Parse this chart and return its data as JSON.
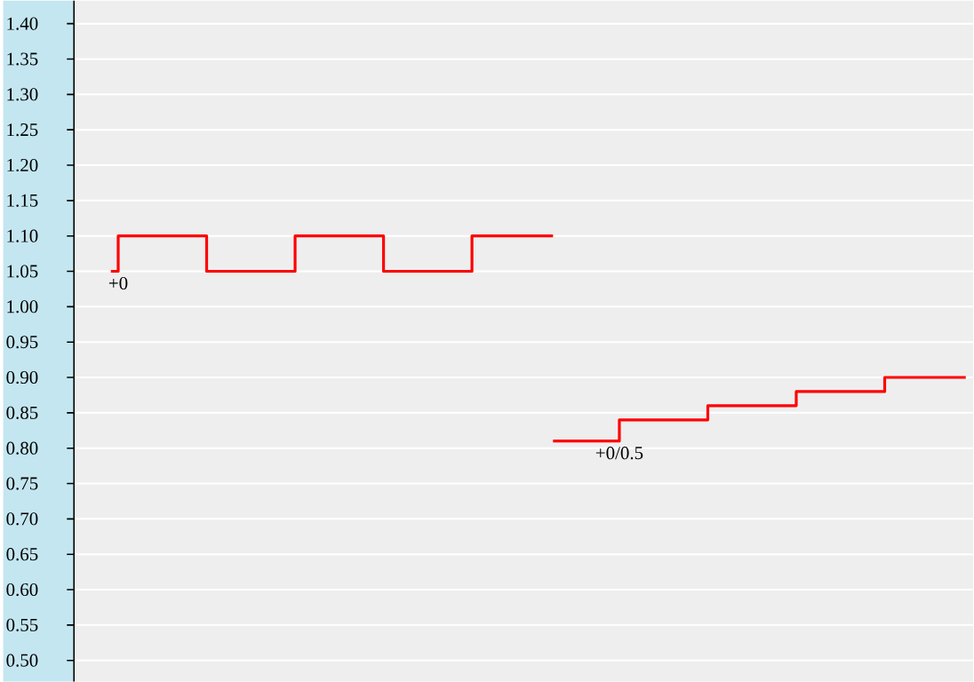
{
  "chart_data": {
    "type": "step",
    "ylim": [
      0.47,
      1.4325
    ],
    "categories": [
      null,
      null,
      null,
      null,
      null,
      null,
      null,
      null,
      null,
      null,
      null,
      null,
      null,
      null,
      null,
      null,
      null,
      null,
      null,
      null,
      null,
      null,
      null,
      null,
      null,
      null,
      null,
      null,
      null,
      null,
      null,
      null,
      null,
      null,
      null,
      null,
      null,
      null,
      null,
      null,
      null,
      null,
      null,
      null,
      null,
      null,
      null,
      null,
      null,
      null,
      null,
      null,
      null,
      null,
      null,
      null,
      null,
      null,
      null,
      null,
      null
    ],
    "yticks": [
      {
        "value": 0.5,
        "label": "0.50"
      },
      {
        "value": 0.55,
        "label": "0.55"
      },
      {
        "value": 0.6,
        "label": "0.60"
      },
      {
        "value": 0.65,
        "label": "0.65"
      },
      {
        "value": 0.7,
        "label": "0.70"
      },
      {
        "value": 0.75,
        "label": "0.75"
      },
      {
        "value": 0.8,
        "label": "0.80"
      },
      {
        "value": 0.85,
        "label": "0.85"
      },
      {
        "value": 0.9,
        "label": "0.90"
      },
      {
        "value": 0.95,
        "label": "0.95"
      },
      {
        "value": 1.0,
        "label": "1.00"
      },
      {
        "value": 1.05,
        "label": "1.05"
      },
      {
        "value": 1.1,
        "label": "1.10"
      },
      {
        "value": 1.15,
        "label": "1.15"
      },
      {
        "value": 1.2,
        "label": "1.20"
      },
      {
        "value": 1.25,
        "label": "1.25"
      },
      {
        "value": 1.3,
        "label": "1.30"
      },
      {
        "value": 1.35,
        "label": "1.35"
      },
      {
        "value": 1.4,
        "label": "1.40"
      }
    ],
    "tick_labels": "y",
    "grid": "y",
    "series": [
      {
        "color": "#ff0000",
        "values": [
          null,
          null,
          1.05,
          1.1,
          1.1,
          1.1,
          1.1,
          1.1,
          1.1,
          1.05,
          1.05,
          1.05,
          1.05,
          1.05,
          1.05,
          1.1,
          1.1,
          1.1,
          1.1,
          1.1,
          1.1,
          1.05,
          1.05,
          1.05,
          1.05,
          1.05,
          1.05,
          1.1,
          1.1,
          1.1,
          1.1,
          1.1,
          1.1,
          null,
          null,
          null,
          null,
          null,
          null,
          null,
          null,
          null,
          null,
          null,
          null,
          null,
          null,
          null,
          null,
          null,
          null,
          null,
          null,
          null,
          null,
          null,
          null,
          null,
          null,
          null,
          null
        ]
      },
      {
        "color": "#ff0000",
        "values": [
          null,
          null,
          null,
          null,
          null,
          null,
          null,
          null,
          null,
          null,
          null,
          null,
          null,
          null,
          null,
          null,
          null,
          null,
          null,
          null,
          null,
          null,
          null,
          null,
          null,
          null,
          null,
          null,
          null,
          null,
          null,
          null,
          0.81,
          0.81,
          0.81,
          0.81,
          0.81,
          0.84,
          0.84,
          0.84,
          0.84,
          0.84,
          0.84,
          0.86,
          0.86,
          0.86,
          0.86,
          0.86,
          0.86,
          0.88,
          0.88,
          0.88,
          0.88,
          0.88,
          0.88,
          0.9,
          0.9,
          0.9,
          0.9,
          0.9,
          0.9
        ]
      }
    ],
    "annotations": [
      "+0",
      "+0/0.5"
    ]
  }
}
